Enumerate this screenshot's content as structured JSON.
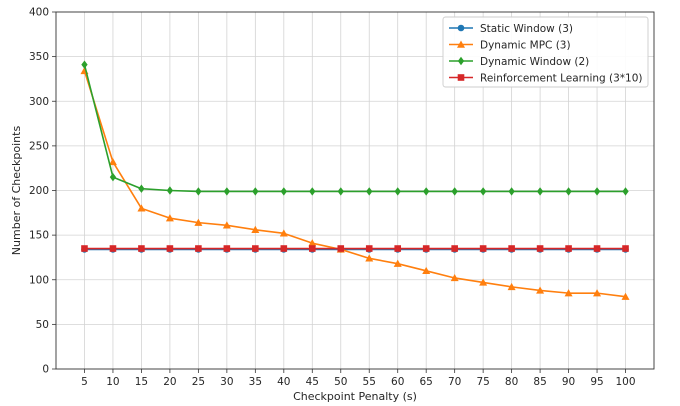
{
  "chart_data": {
    "type": "line",
    "title": "",
    "xlabel": "Checkpoint Penalty (s)",
    "ylabel": "Number of Checkpoints",
    "x": [
      5,
      10,
      15,
      20,
      25,
      30,
      35,
      40,
      45,
      50,
      55,
      60,
      65,
      70,
      75,
      80,
      85,
      90,
      95,
      100
    ],
    "x_ticks": [
      "5",
      "10",
      "15",
      "20",
      "25",
      "30",
      "35",
      "40",
      "45",
      "50",
      "55",
      "60",
      "65",
      "70",
      "75",
      "80",
      "85",
      "90",
      "95",
      "100"
    ],
    "ylim": [
      0,
      400
    ],
    "y_ticks": [
      "0",
      "50",
      "100",
      "150",
      "200",
      "250",
      "300",
      "350",
      "400"
    ],
    "grid": true,
    "legend_position": "top-right",
    "series": [
      {
        "name": "Static Window (3)",
        "color": "#1f77b4",
        "marker": "circle",
        "values": [
          134,
          134,
          134,
          134,
          134,
          134,
          134,
          134,
          134,
          134,
          134,
          134,
          134,
          134,
          134,
          134,
          134,
          134,
          134,
          134
        ]
      },
      {
        "name": "Dynamic MPC (3)",
        "color": "#ff7f0e",
        "marker": "triangle",
        "values": [
          334,
          232,
          180,
          169,
          164,
          161,
          156,
          152,
          141,
          134,
          124,
          118,
          110,
          102,
          97,
          92,
          88,
          85,
          85,
          81
        ]
      },
      {
        "name": "Dynamic Window (2)",
        "color": "#2ca02c",
        "marker": "diamond",
        "values": [
          341,
          215,
          202,
          200,
          199,
          199,
          199,
          199,
          199,
          199,
          199,
          199,
          199,
          199,
          199,
          199,
          199,
          199,
          199,
          199
        ]
      },
      {
        "name": "Reinforcement Learning (3*10)",
        "color": "#d62728",
        "marker": "square",
        "values": [
          135,
          135,
          135,
          135,
          135,
          135,
          135,
          135,
          135,
          135,
          135,
          135,
          135,
          135,
          135,
          135,
          135,
          135,
          135,
          135
        ]
      }
    ]
  }
}
